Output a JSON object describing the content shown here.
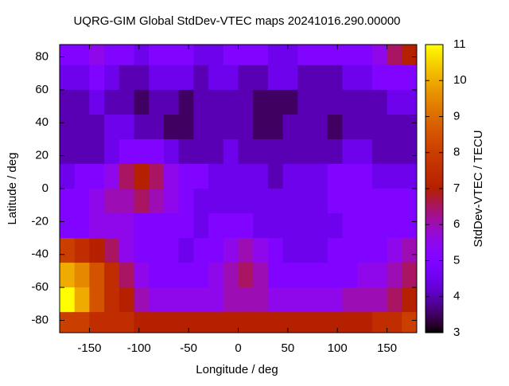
{
  "chart_data": {
    "type": "heatmap",
    "title": "UQRG-GIM Global StdDev-VTEC maps 20241016.290.00000",
    "xlabel": "Longitude / deg",
    "ylabel": "Latitude / deg",
    "cblabel": "StdDev-VTEC / TECU",
    "xlim": [
      -180,
      180
    ],
    "ylim": [
      -87.5,
      87.5
    ],
    "cblim": [
      3,
      11
    ],
    "xticks": [
      -150,
      -100,
      -50,
      0,
      50,
      100,
      150
    ],
    "yticks": [
      -80,
      -60,
      -40,
      -20,
      0,
      20,
      40,
      60,
      80
    ],
    "cbticks": [
      3,
      4,
      5,
      6,
      7,
      8,
      9,
      10,
      11
    ],
    "x": [
      -172.5,
      -157.5,
      -142.5,
      -127.5,
      -112.5,
      -97.5,
      -82.5,
      -67.5,
      -52.5,
      -37.5,
      -22.5,
      -7.5,
      7.5,
      22.5,
      37.5,
      52.5,
      67.5,
      82.5,
      97.5,
      112.5,
      127.5,
      142.5,
      157.5,
      172.5
    ],
    "y": [
      82.5,
      67.5,
      52.5,
      37.5,
      22.5,
      7.5,
      -7.5,
      -22.5,
      -37.5,
      -52.5,
      -67.5,
      -82.5
    ],
    "z": [
      [
        5,
        5,
        5.5,
        5,
        5,
        4.5,
        5,
        5,
        5,
        4.5,
        4.5,
        5,
        5,
        5,
        4.5,
        4.5,
        5,
        5,
        5,
        5,
        5,
        5.5,
        6.5,
        7
      ],
      [
        4.5,
        4.5,
        5,
        4.5,
        4,
        4,
        4.5,
        4.5,
        4.5,
        4,
        4.5,
        4.5,
        4,
        4,
        4.5,
        4.5,
        4,
        4,
        4,
        4.5,
        4.5,
        5,
        5,
        5
      ],
      [
        4,
        4,
        4.5,
        4,
        4,
        3.5,
        4,
        4,
        3.5,
        4,
        4,
        4,
        4,
        3.5,
        3.5,
        3.5,
        4,
        4,
        4,
        4,
        4,
        4,
        4.5,
        4.5
      ],
      [
        4,
        4,
        4,
        4.5,
        4.5,
        4,
        4,
        3.5,
        3.5,
        4,
        4,
        4,
        4,
        3.5,
        3.5,
        4,
        4,
        4,
        3.5,
        4,
        4,
        4,
        4,
        4
      ],
      [
        4,
        4,
        4,
        4.5,
        5,
        5,
        5,
        4.5,
        4,
        4,
        4,
        4.5,
        4,
        4,
        4,
        4,
        4,
        4,
        4,
        4.5,
        4.5,
        4,
        4,
        4
      ],
      [
        4.5,
        5,
        5,
        5.5,
        6.5,
        7,
        6.5,
        5.5,
        5,
        5,
        4.5,
        4.5,
        4.5,
        4.5,
        4,
        4.5,
        4.5,
        4.5,
        5,
        5,
        5,
        4.5,
        4.5,
        4.5
      ],
      [
        5,
        5,
        5.5,
        6,
        6,
        6.5,
        6,
        5.5,
        5,
        4.5,
        4.5,
        4.5,
        4.5,
        4.5,
        4.5,
        4.5,
        4.5,
        4.5,
        5,
        5,
        5,
        5,
        5,
        5
      ],
      [
        5,
        5,
        5.5,
        5.5,
        5.5,
        5,
        5,
        5,
        5,
        4.5,
        5,
        5,
        5,
        4.5,
        4.5,
        4.5,
        4.5,
        4.5,
        4.5,
        5,
        5,
        5,
        5,
        5
      ],
      [
        8,
        7.5,
        7,
        6.5,
        5.5,
        5,
        5,
        5,
        4.5,
        5,
        5,
        5.5,
        6,
        5.5,
        5,
        4.5,
        4.5,
        4.5,
        5,
        5,
        5,
        5,
        5.5,
        6
      ],
      [
        10,
        9.5,
        8.5,
        7.5,
        6.5,
        5.5,
        5,
        5,
        5,
        5,
        5.5,
        6,
        6.5,
        6,
        5,
        5,
        5,
        5,
        5,
        5,
        5.5,
        5.5,
        6,
        6.5
      ],
      [
        11,
        10,
        8.5,
        7.5,
        7,
        6,
        5.5,
        5.5,
        5.5,
        5.5,
        5.5,
        6,
        6,
        6,
        5.5,
        5.5,
        5.5,
        5.5,
        5.5,
        6,
        6,
        6,
        6.5,
        7
      ],
      [
        8,
        8,
        7.5,
        7.5,
        7.5,
        7,
        7,
        7,
        7,
        7,
        7,
        7,
        7,
        7,
        7,
        7,
        7,
        7,
        7,
        7,
        7,
        7.5,
        7.5,
        8
      ]
    ]
  }
}
